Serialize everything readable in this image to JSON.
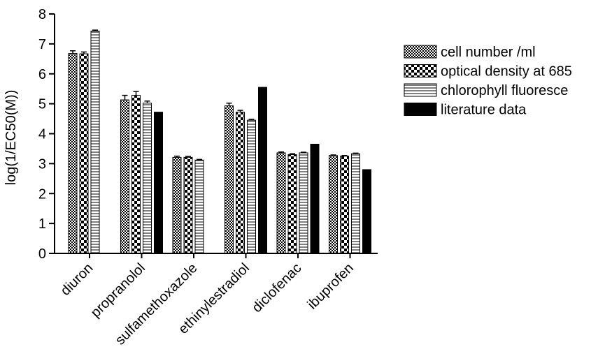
{
  "chart_data": {
    "type": "bar",
    "ylabel": "log(1/EC50(M))",
    "xlabel": "",
    "title": "",
    "ylim": [
      0,
      8
    ],
    "yticks": [
      0,
      1,
      2,
      3,
      4,
      5,
      6,
      7,
      8
    ],
    "legend_position": "right",
    "categories": [
      "diuron",
      "propranolol",
      "sulfamethoxazole",
      "ethinylestradiol",
      "diclofenac",
      "ibuprofen"
    ],
    "series": [
      {
        "name": "cell number /ml",
        "pattern": "fine-checker",
        "values": [
          6.68,
          5.13,
          3.21,
          4.93,
          3.36,
          3.27
        ],
        "errors": [
          0.09,
          0.15,
          0.04,
          0.09,
          0.03,
          0.02
        ]
      },
      {
        "name": "optical density at 685",
        "pattern": "coarse-checker",
        "values": [
          6.67,
          5.28,
          3.21,
          4.72,
          3.3,
          3.25
        ],
        "errors": [
          0.06,
          0.13,
          0.03,
          0.06,
          0.03,
          0.02
        ]
      },
      {
        "name": "chlorophyll fluoresce",
        "pattern": "horizontal-stripes",
        "values": [
          7.43,
          5.02,
          3.12,
          4.45,
          3.36,
          3.33
        ],
        "errors": [
          0.03,
          0.07,
          0.02,
          0.03,
          0.02,
          0.02
        ]
      },
      {
        "name": "literature data",
        "pattern": "solid-black",
        "color": "#000000",
        "values": [
          null,
          4.72,
          null,
          5.55,
          3.65,
          2.8
        ],
        "errors": [
          null,
          null,
          null,
          null,
          null,
          null
        ]
      }
    ]
  }
}
